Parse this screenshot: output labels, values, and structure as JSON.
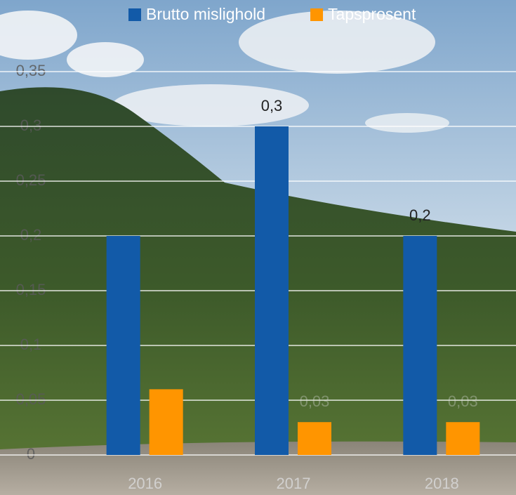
{
  "chart_data": {
    "type": "bar",
    "categories": [
      "2016",
      "2017",
      "2018"
    ],
    "series": [
      {
        "name": "Brutto mislighold",
        "color": "#125aa8",
        "values": [
          0.2,
          0.3,
          0.2
        ],
        "value_labels": [
          null,
          "0,3",
          "0,2"
        ]
      },
      {
        "name": "Tapsprosent",
        "color": "#ff9500",
        "values": [
          0.06,
          0.03,
          0.03
        ],
        "value_labels": [
          null,
          "0,03",
          "0,03"
        ]
      }
    ],
    "ylim": [
      0,
      0.35
    ],
    "yticks": [
      0,
      {
        "value": 0.05,
        "label": "0,05"
      },
      {
        "value": 0.1,
        "label": "0,1"
      },
      {
        "value": 0.15,
        "label": "0,15"
      },
      {
        "value": 0.2,
        "label": "0,2"
      },
      {
        "value": 0.25,
        "label": "0,25"
      },
      {
        "value": 0.3,
        "label": "0,3"
      },
      {
        "value": 0.35,
        "label": "0,35"
      }
    ],
    "grid": true,
    "legend": "top"
  }
}
